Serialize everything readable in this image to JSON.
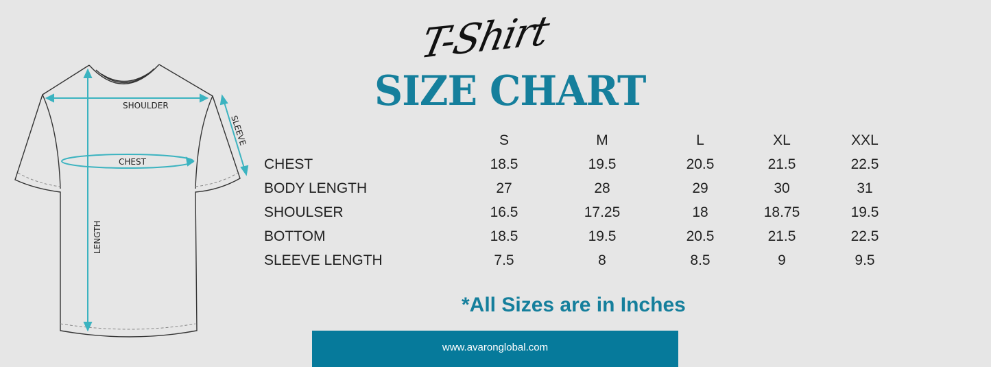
{
  "header": {
    "script_title": "T-Shirt",
    "title": "SIZE CHART"
  },
  "diagram": {
    "labels": {
      "shoulder": "SHOULDER",
      "chest": "CHEST",
      "sleeve": "SLEEVE",
      "length": "LENGTH"
    },
    "arrow_color": "#3bb3c0"
  },
  "table": {
    "columns": [
      "S",
      "M",
      "L",
      "XL",
      "XXL"
    ],
    "rows": [
      {
        "label": "CHEST",
        "values": [
          "18.5",
          "19.5",
          "20.5",
          "21.5",
          "22.5"
        ]
      },
      {
        "label": "BODY LENGTH",
        "values": [
          "27",
          "28",
          "29",
          "30",
          "31"
        ]
      },
      {
        "label": "SHOULSER",
        "values": [
          "16.5",
          "17.25",
          "18",
          "18.75",
          "19.5"
        ]
      },
      {
        "label": "BOTTOM",
        "values": [
          "18.5",
          "19.5",
          "20.5",
          "21.5",
          "22.5"
        ]
      },
      {
        "label": "SLEEVE LENGTH",
        "values": [
          "7.5",
          "8",
          "8.5",
          "9",
          "9.5"
        ]
      }
    ]
  },
  "note": "*All Sizes are in Inches",
  "footer": {
    "url": "www.avaronglobal.com"
  },
  "colors": {
    "accent": "#157f9c",
    "banner": "#067a9b",
    "background": "#e6e6e6"
  }
}
